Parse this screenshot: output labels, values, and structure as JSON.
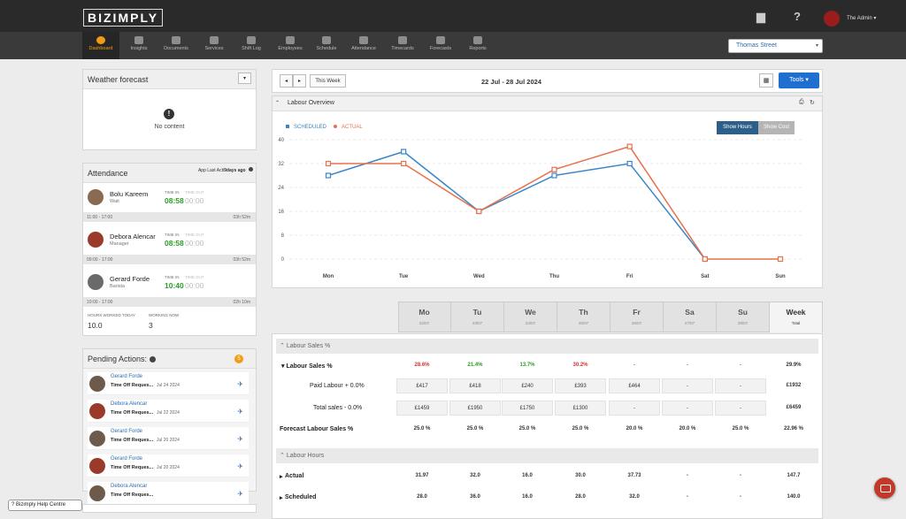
{
  "app": {
    "logo": "BIZIMPLY",
    "user": "The Admin ▾"
  },
  "nav": [
    {
      "label": "Dashboard",
      "active": true
    },
    {
      "label": "Insights"
    },
    {
      "label": "Documents"
    },
    {
      "label": "Services"
    },
    {
      "label": "Shift Log"
    },
    {
      "label": "Employees"
    },
    {
      "label": "Schedule"
    },
    {
      "label": "Attendance"
    },
    {
      "label": "Timecards"
    },
    {
      "label": "Forecasts"
    },
    {
      "label": "Reports"
    }
  ],
  "location": "Thomas Street",
  "weather": {
    "title": "Weather forecast",
    "empty": "No content"
  },
  "attendance": {
    "title": "Attendance",
    "app_last_prefix": "App Last Acti",
    "app_last_value": "9days ago",
    "time_in_label": "TIME IN",
    "time_out_label": "TIME OUT",
    "rows": [
      {
        "name": "Bolu Kareem",
        "role": "Wait",
        "in": "08:58",
        "out": "00:00",
        "shift": "11:00 - 17:00",
        "dur": "03h 52m"
      },
      {
        "name": "Debora Alencar",
        "role": "Manager",
        "in": "08:58",
        "out": "00:00",
        "shift": "09:00 - 17:00",
        "dur": "03h 52m"
      },
      {
        "name": "Gerard Forde",
        "role": "Barista",
        "in": "10:40",
        "out": "00:00",
        "shift": "10:00 - 17:00",
        "dur": "02h 10m"
      }
    ],
    "hours_label": "HOURS WORKED TODAY",
    "hours_value": "10.0",
    "working_label": "WORKING NOW",
    "working_value": "3"
  },
  "pending": {
    "title": "Pending Actions:",
    "count": "5",
    "items": [
      {
        "name": "Gerard Forde",
        "action": "Time Off Reques...",
        "date": "Jul 24 2024"
      },
      {
        "name": "Debora Alencar",
        "action": "Time Off Reques...",
        "date": "Jul 22 2024"
      },
      {
        "name": "Gerard Forde",
        "action": "Time Off Reques...",
        "date": "Jul 20 2024"
      },
      {
        "name": "Gerard Forde",
        "action": "Time Off Reques...",
        "date": "Jul 20 2024"
      },
      {
        "name": "Debora Alencar",
        "action": "Time Off Reques...",
        "date": ""
      }
    ]
  },
  "help": "? Bizimply Help Centre",
  "week": {
    "this_week": "This Week",
    "range": "22 Jul - 28 Jul 2024",
    "tools": "Tools ▾"
  },
  "labour_overview": {
    "title": "Labour Overview",
    "show_hours": "Show Hours",
    "show_cost": "Show Cost"
  },
  "colors": {
    "scheduled": "#3a86c8",
    "actual": "#e8704a",
    "accent": "#1f6fd1"
  },
  "chart_data": {
    "type": "line",
    "categories": [
      "Mon",
      "Tue",
      "Wed",
      "Thu",
      "Fri",
      "Sat",
      "Sun"
    ],
    "series": [
      {
        "name": "SCHEDULED",
        "values": [
          28,
          36,
          16,
          28,
          32,
          0,
          null
        ]
      },
      {
        "name": "ACTUAL",
        "values": [
          32,
          32,
          16,
          30,
          37.73,
          0,
          0
        ]
      }
    ],
    "yticks": [
      0,
      8,
      16,
      24,
      32,
      40
    ],
    "ylim": [
      0,
      40
    ],
    "grid": true,
    "legend": "top-left"
  },
  "days": [
    {
      "d": "Mo",
      "dt": "22/07"
    },
    {
      "d": "Tu",
      "dt": "23/07"
    },
    {
      "d": "We",
      "dt": "24/07"
    },
    {
      "d": "Th",
      "dt": "25/07"
    },
    {
      "d": "Fr",
      "dt": "26/07"
    },
    {
      "d": "Sa",
      "dt": "27/07"
    },
    {
      "d": "Su",
      "dt": "28/07"
    },
    {
      "d": "Week",
      "dt": "Total"
    }
  ],
  "sales": {
    "section": "Labour Sales %",
    "rows": [
      {
        "label": "▾ Labour Sales %",
        "cells": [
          "28.6%",
          "21.4%",
          "13.7%",
          "30.2%",
          "-",
          "-",
          "-",
          "29.9%"
        ]
      },
      {
        "label": "Paid Labour + 0.0%",
        "cells": [
          "£417",
          "£418",
          "£240",
          "£393",
          "£464",
          "-",
          "-",
          "£1932"
        ]
      },
      {
        "label": "Total sales - 0.0%",
        "cells": [
          "£1459",
          "£1950",
          "£1750",
          "£1300",
          "-",
          "-",
          "-",
          "£6459"
        ]
      },
      {
        "label": "Forecast Labour Sales %",
        "cells": [
          "25.0 %",
          "25.0 %",
          "25.0 %",
          "25.0 %",
          "20.0 %",
          "20.0 %",
          "25.0 %",
          "22.96 %"
        ]
      }
    ]
  },
  "hours": {
    "section": "Labour Hours",
    "rows": [
      {
        "label": "Actual",
        "cells": [
          "31.97",
          "32.0",
          "16.0",
          "30.0",
          "37.73",
          "-",
          "-",
          "147.7"
        ]
      },
      {
        "label": "Scheduled",
        "cells": [
          "28.0",
          "36.0",
          "16.0",
          "28.0",
          "32.0",
          "-",
          "-",
          "140.0"
        ]
      }
    ]
  }
}
